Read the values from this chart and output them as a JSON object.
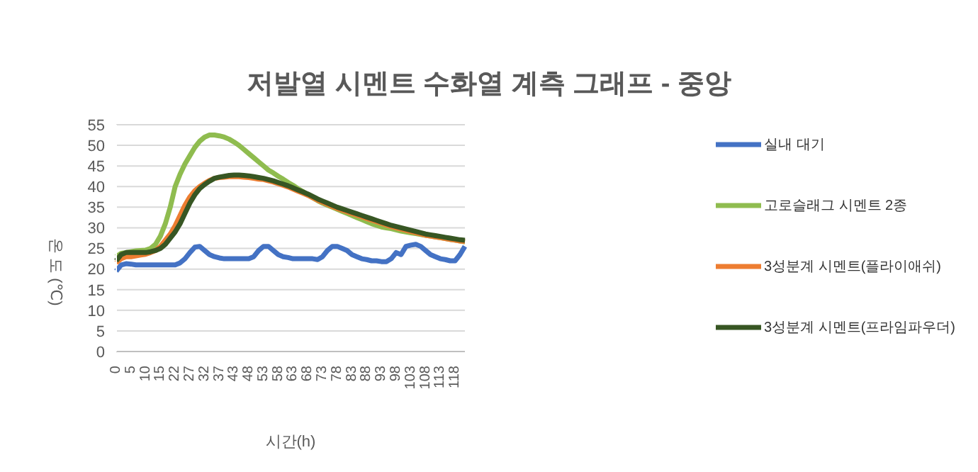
{
  "chart_data": {
    "type": "line",
    "title": "저발열 시멘트 수화열 계측 그래프 - 중앙",
    "xlabel": "시간(h)",
    "ylabel": "온 도 (℃)",
    "categories": [
      "0",
      null,
      null,
      "5",
      null,
      null,
      "10",
      null,
      null,
      "15",
      null,
      null,
      "22",
      null,
      null,
      "27",
      null,
      null,
      "32",
      null,
      null,
      "37",
      null,
      null,
      "43",
      null,
      null,
      "48",
      null,
      null,
      "53",
      null,
      null,
      "58",
      null,
      null,
      "63",
      null,
      null,
      "68",
      null,
      null,
      "73",
      null,
      null,
      "78",
      null,
      null,
      "83",
      null,
      null,
      "88",
      null,
      null,
      "93",
      null,
      null,
      "98",
      null,
      null,
      "103",
      null,
      null,
      "108",
      null,
      null,
      "113",
      null,
      null,
      "118",
      null,
      null
    ],
    "series": [
      {
        "name": "실내 대기",
        "color": "#4472c4",
        "values": [
          19.5,
          21,
          21.3,
          21.2,
          21,
          21,
          21,
          21,
          21,
          21,
          21,
          21,
          21,
          21.5,
          22.5,
          24,
          25.3,
          25.5,
          24.5,
          23.5,
          23,
          22.7,
          22.5,
          22.5,
          22.5,
          22.5,
          22.5,
          22.5,
          23,
          24.5,
          25.5,
          25.5,
          24.5,
          23.5,
          23,
          22.8,
          22.5,
          22.5,
          22.5,
          22.5,
          22.5,
          22.3,
          23,
          24.5,
          25.5,
          25.5,
          25,
          24.5,
          23.5,
          23,
          22.5,
          22.3,
          22,
          22,
          21.8,
          21.8,
          22.5,
          24,
          23.5,
          25.5,
          25.8,
          26,
          25.5,
          24.5,
          23.5,
          23,
          22.5,
          22.3,
          22,
          22,
          23.5,
          25.5
        ]
      },
      {
        "name": "고로슬래그 시멘트 2종",
        "color": "#8fbc4f",
        "values": [
          23,
          23.8,
          24,
          24.2,
          24.4,
          24.5,
          24.6,
          25,
          26,
          28,
          31,
          35,
          40,
          43,
          45.5,
          47.5,
          49.5,
          51,
          52,
          52.5,
          52.5,
          52.3,
          52,
          51.5,
          50.8,
          50,
          49,
          48,
          47,
          46,
          45,
          44,
          43.3,
          42.5,
          41.8,
          41,
          40.3,
          39.5,
          38.8,
          38,
          37.3,
          36.6,
          36,
          35.5,
          35,
          34.5,
          34,
          33.5,
          33,
          32.5,
          32,
          31.5,
          31,
          30.6,
          30.2,
          30,
          29.8,
          29.5,
          29.2,
          29,
          28.8,
          28.6,
          28.4,
          28.2,
          28,
          27.8,
          27.6,
          27.4,
          27.2,
          27,
          26.8,
          26.6
        ]
      },
      {
        "name": "3성분계 시멘트(플라이애쉬)",
        "color": "#ed7d31",
        "values": [
          21.5,
          22.5,
          23,
          23,
          23.2,
          23.4,
          23.6,
          24,
          24.5,
          25.5,
          27,
          28.5,
          30.5,
          33,
          35.5,
          37.5,
          39,
          40,
          40.8,
          41.5,
          42,
          42.2,
          42.3,
          42.4,
          42.4,
          42.4,
          42.3,
          42.2,
          42,
          41.8,
          41.7,
          41.4,
          41.1,
          40.7,
          40.3,
          39.9,
          39.4,
          38.9,
          38.4,
          37.9,
          37.3,
          36.7,
          36.2,
          35.7,
          35.2,
          34.7,
          34.3,
          33.9,
          33.5,
          33.1,
          32.7,
          32.3,
          31.9,
          31.5,
          31.1,
          30.7,
          30.3,
          30,
          29.7,
          29.4,
          29.1,
          28.8,
          28.5,
          28.2,
          28,
          27.8,
          27.6,
          27.4,
          27.2,
          27,
          26.8,
          26.7
        ]
      },
      {
        "name": "3성분계 시멘트(프라임파우더)",
        "color": "#375623",
        "values": [
          22,
          23.5,
          24,
          24,
          24,
          24,
          24,
          24.2,
          24.5,
          25,
          26,
          27.5,
          29,
          31,
          33.5,
          36,
          38,
          39.5,
          40.5,
          41.3,
          42,
          42.3,
          42.5,
          42.7,
          42.8,
          42.8,
          42.7,
          42.6,
          42.4,
          42.2,
          42,
          41.7,
          41.4,
          41,
          40.6,
          40.2,
          39.7,
          39.2,
          38.7,
          38.2,
          37.6,
          37,
          36.5,
          36,
          35.5,
          35,
          34.6,
          34.2,
          33.8,
          33.4,
          33,
          32.6,
          32.2,
          31.8,
          31.4,
          31,
          30.6,
          30.3,
          30,
          29.7,
          29.4,
          29.1,
          28.8,
          28.5,
          28.3,
          28.1,
          27.9,
          27.7,
          27.5,
          27.3,
          27.1,
          27
        ]
      }
    ],
    "ylim": [
      0,
      55
    ],
    "yticks": [
      0,
      5,
      10,
      15,
      20,
      25,
      30,
      35,
      40,
      45,
      50,
      55
    ],
    "grid": "y",
    "legend": "right",
    "marker": "none",
    "line_style": "solid"
  }
}
